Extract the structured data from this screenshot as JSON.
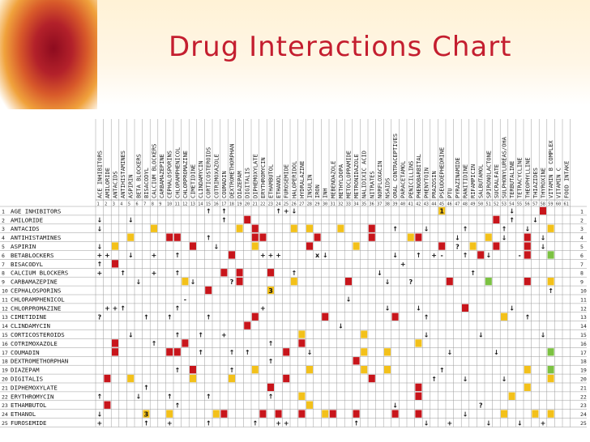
{
  "slide": {
    "title": "Drug Interactions Chart"
  },
  "colors": {
    "title": "#c41e2f",
    "red_cell": "#c8151b",
    "yellow_cell": "#f3c11a",
    "green_cell": "#7cc242"
  },
  "chart": {
    "columns": [
      "ACE INHIBITORS",
      "AMILORIDE",
      "ANTACIDS",
      "ANTIHISTAMINES",
      "ASPIRIN",
      "BETA BLOCKERS",
      "BISACODYL",
      "CALCIUM BLOCKERS",
      "CARBAMAZEPINE",
      "CEPHALOSPORINS",
      "CHLORAMPHENICOL",
      "CHLORPROMAZINE",
      "CIMETIDINE",
      "CLINDAMYCIN",
      "CORTICOSTEROIDS",
      "COTRIMOXAZOLE",
      "COUMADIN",
      "DEXTROMETHORPHAN",
      "DIAZEPAM",
      "DIGITALIS",
      "DIPHEMOXYLATE",
      "ERYTHROMYCIN",
      "ETHAMBUTOL",
      "ETHANOL",
      "FUROSEMIDE",
      "HALOPERIDOL",
      "HYDRALAZINE",
      "INSULIN",
      "IRON",
      "INH",
      "MEBENDAZOLE",
      "METHYLDOPA",
      "METOCLOPRAMIDE",
      "METRONIDAZOLE",
      "NALIDIXIC ACID",
      "NITRATES",
      "NORFLOXACIN",
      "NSAIDS",
      "ORAL CONTRACEPTIVES",
      "PARACETAMOL",
      "PENICILLINS",
      "PHENOBARBITAL",
      "PHENYTOIN",
      "PRAZOSIN",
      "PSEUDOEPHEDRINE",
      "PTU",
      "PYRAZINAMIDE",
      "RANITIDINE",
      "RIFAMPICIN",
      "SALBUTAMOL",
      "SPIRONOLACTONE",
      "SUCRALFATE",
      "SULPHONYLUREAS/OHA",
      "TERBUTALINE",
      "TETRACYCLINE",
      "THEOPHYLLINE",
      "THIAZIDES",
      "THYROXINE",
      "VITAMIN B COMPLEX",
      "VITAMIN C",
      "FOOD INTAKE"
    ],
    "rows": [
      "AGE INHIBITORS",
      "AMILORIDE",
      "ANTACIDS",
      "ANTIHISTAMINES",
      "ASPIRIN",
      "BETABLOCKERS",
      "BISACODYL",
      "CALCIUM BLOCKERS",
      "CARBAMAZEPINE",
      "CEPHALOSPORINS",
      "CHLORAMPHENICOL",
      "CHLORPROMAZINE",
      "CIMETIDINE",
      "CLINDAMYCIN",
      "CORTICOSTEROIDS",
      "COTRIMOXAZOLE",
      "COUMADIN",
      "DEXTROMETHORPHAN",
      "DIAZEPAM",
      "DIGITALIS",
      "DIPHEMOXYLATE",
      "ERYTHROMYCIN",
      "ETHAMBUTOL",
      "ETHANOL",
      "FUROSEMIDE"
    ],
    "cells": [
      {
        "r": 0,
        "c": 14,
        "v": "↑"
      },
      {
        "r": 0,
        "c": 16,
        "v": "↑"
      },
      {
        "r": 0,
        "c": 23,
        "v": "↑"
      },
      {
        "r": 0,
        "c": 24,
        "v": "+"
      },
      {
        "r": 0,
        "c": 25,
        "v": "↓"
      },
      {
        "r": 0,
        "c": 44,
        "k": "yellow",
        "v": "1"
      },
      {
        "r": 0,
        "c": 53,
        "v": "↓"
      },
      {
        "r": 0,
        "c": 57,
        "k": "red"
      },
      {
        "r": 1,
        "c": 0,
        "v": "↓"
      },
      {
        "r": 1,
        "c": 4,
        "v": "↓"
      },
      {
        "r": 1,
        "c": 16,
        "v": "↑"
      },
      {
        "r": 1,
        "c": 19,
        "k": "red"
      },
      {
        "r": 1,
        "c": 51,
        "k": "red"
      },
      {
        "r": 1,
        "c": 53,
        "v": "↑"
      },
      {
        "r": 1,
        "c": 56,
        "v": "↓"
      },
      {
        "r": 2,
        "c": 0,
        "v": "↓"
      },
      {
        "r": 2,
        "c": 7,
        "k": "yellow"
      },
      {
        "r": 2,
        "c": 18,
        "k": "yellow"
      },
      {
        "r": 2,
        "c": 20,
        "k": "red"
      },
      {
        "r": 2,
        "c": 25,
        "k": "yellow"
      },
      {
        "r": 2,
        "c": 27,
        "k": "yellow"
      },
      {
        "r": 2,
        "c": 31,
        "k": "yellow"
      },
      {
        "r": 2,
        "c": 35,
        "k": "red"
      },
      {
        "r": 2,
        "c": 38,
        "v": "↑"
      },
      {
        "r": 2,
        "c": 42,
        "v": "↓"
      },
      {
        "r": 2,
        "c": 47,
        "v": "↑"
      },
      {
        "r": 2,
        "c": 52,
        "v": "↑"
      },
      {
        "r": 2,
        "c": 55,
        "v": "↓"
      },
      {
        "r": 2,
        "c": 58,
        "k": "yellow"
      },
      {
        "r": 3,
        "c": 4,
        "k": "yellow"
      },
      {
        "r": 3,
        "c": 9,
        "k": "red"
      },
      {
        "r": 3,
        "c": 10,
        "k": "red"
      },
      {
        "r": 3,
        "c": 14,
        "v": "↑"
      },
      {
        "r": 3,
        "c": 20,
        "k": "red"
      },
      {
        "r": 3,
        "c": 21,
        "k": "red"
      },
      {
        "r": 3,
        "c": 28,
        "k": "red"
      },
      {
        "r": 3,
        "c": 35,
        "k": "red"
      },
      {
        "r": 3,
        "c": 40,
        "k": "yellow"
      },
      {
        "r": 3,
        "c": 41,
        "k": "red"
      },
      {
        "r": 3,
        "c": 46,
        "v": "↓"
      },
      {
        "r": 3,
        "c": 50,
        "k": "yellow"
      },
      {
        "r": 3,
        "c": 52,
        "v": "↓"
      },
      {
        "r": 3,
        "c": 55,
        "k": "red"
      },
      {
        "r": 3,
        "c": 57,
        "v": "↓"
      },
      {
        "r": 4,
        "c": 0,
        "v": "↓"
      },
      {
        "r": 4,
        "c": 2,
        "k": "yellow"
      },
      {
        "r": 4,
        "c": 12,
        "k": "red"
      },
      {
        "r": 4,
        "c": 15,
        "v": "↓"
      },
      {
        "r": 4,
        "c": 20,
        "k": "yellow"
      },
      {
        "r": 4,
        "c": 27,
        "k": "red"
      },
      {
        "r": 4,
        "c": 33,
        "k": "yellow"
      },
      {
        "r": 4,
        "c": 44,
        "k": "red"
      },
      {
        "r": 4,
        "c": 46,
        "v": "?"
      },
      {
        "r": 4,
        "c": 48,
        "k": "yellow"
      },
      {
        "r": 4,
        "c": 51,
        "k": "red"
      },
      {
        "r": 4,
        "c": 55,
        "k": "red"
      },
      {
        "r": 4,
        "c": 57,
        "v": "↓"
      },
      {
        "r": 5,
        "c": 0,
        "v": "+"
      },
      {
        "r": 5,
        "c": 1,
        "v": "+"
      },
      {
        "r": 5,
        "c": 4,
        "v": "↓"
      },
      {
        "r": 5,
        "c": 7,
        "v": "+"
      },
      {
        "r": 5,
        "c": 10,
        "v": "↑"
      },
      {
        "r": 5,
        "c": 17,
        "k": "red"
      },
      {
        "r": 5,
        "c": 21,
        "v": "+"
      },
      {
        "r": 5,
        "c": 22,
        "v": "+"
      },
      {
        "r": 5,
        "c": 23,
        "v": "+"
      },
      {
        "r": 5,
        "c": 28,
        "v": "x"
      },
      {
        "r": 5,
        "c": 29,
        "v": "↓"
      },
      {
        "r": 5,
        "c": 38,
        "v": "↓"
      },
      {
        "r": 5,
        "c": 41,
        "v": "↑"
      },
      {
        "r": 5,
        "c": 43,
        "v": "+"
      },
      {
        "r": 5,
        "c": 44,
        "v": "-"
      },
      {
        "r": 5,
        "c": 47,
        "v": "↑"
      },
      {
        "r": 5,
        "c": 49,
        "k": "red"
      },
      {
        "r": 5,
        "c": 50,
        "v": "↓"
      },
      {
        "r": 5,
        "c": 54,
        "v": "-"
      },
      {
        "r": 5,
        "c": 55,
        "k": "red"
      },
      {
        "r": 5,
        "c": 58,
        "k": "green"
      },
      {
        "r": 6,
        "c": 0,
        "v": "↑"
      },
      {
        "r": 6,
        "c": 2,
        "k": "red"
      },
      {
        "r": 6,
        "c": 39,
        "v": "+"
      },
      {
        "r": 7,
        "c": 0,
        "v": "+"
      },
      {
        "r": 7,
        "c": 3,
        "v": "↑"
      },
      {
        "r": 7,
        "c": 7,
        "v": "+"
      },
      {
        "r": 7,
        "c": 10,
        "v": "↑"
      },
      {
        "r": 7,
        "c": 16,
        "k": "red"
      },
      {
        "r": 7,
        "c": 18,
        "k": "red"
      },
      {
        "r": 7,
        "c": 22,
        "k": "red"
      },
      {
        "r": 7,
        "c": 25,
        "v": "↑"
      },
      {
        "r": 7,
        "c": 36,
        "v": "↓"
      },
      {
        "r": 7,
        "c": 48,
        "v": "↑"
      },
      {
        "r": 8,
        "c": 5,
        "v": "↓"
      },
      {
        "r": 8,
        "c": 11,
        "k": "yellow"
      },
      {
        "r": 8,
        "c": 12,
        "v": "↓"
      },
      {
        "r": 8,
        "c": 17,
        "v": "?"
      },
      {
        "r": 8,
        "c": 18,
        "k": "red"
      },
      {
        "r": 8,
        "c": 25,
        "k": "yellow"
      },
      {
        "r": 8,
        "c": 32,
        "k": "red"
      },
      {
        "r": 8,
        "c": 37,
        "v": "↓"
      },
      {
        "r": 8,
        "c": 40,
        "v": "?"
      },
      {
        "r": 8,
        "c": 45,
        "k": "red"
      },
      {
        "r": 8,
        "c": 50,
        "k": "green"
      },
      {
        "r": 8,
        "c": 55,
        "k": "red"
      },
      {
        "r": 8,
        "c": 58,
        "k": "yellow"
      },
      {
        "r": 9,
        "c": 14,
        "k": "red"
      },
      {
        "r": 9,
        "c": 22,
        "k": "yellow",
        "v": "3"
      },
      {
        "r": 9,
        "c": 58,
        "v": "↑"
      },
      {
        "r": 10,
        "c": 11,
        "v": "-"
      },
      {
        "r": 10,
        "c": 32,
        "v": "↓"
      },
      {
        "r": 11,
        "c": 1,
        "v": "+"
      },
      {
        "r": 11,
        "c": 2,
        "v": "+"
      },
      {
        "r": 11,
        "c": 3,
        "v": "↑"
      },
      {
        "r": 11,
        "c": 10,
        "v": "↑"
      },
      {
        "r": 11,
        "c": 21,
        "v": "+"
      },
      {
        "r": 11,
        "c": 37,
        "v": "↓"
      },
      {
        "r": 11,
        "c": 41,
        "v": "↓"
      },
      {
        "r": 11,
        "c": 47,
        "k": "red"
      },
      {
        "r": 11,
        "c": 53,
        "v": "↓"
      },
      {
        "r": 12,
        "c": 0,
        "v": "?"
      },
      {
        "r": 12,
        "c": 6,
        "v": "↑"
      },
      {
        "r": 12,
        "c": 9,
        "v": "↑"
      },
      {
        "r": 12,
        "c": 14,
        "v": "↑"
      },
      {
        "r": 12,
        "c": 20,
        "k": "red"
      },
      {
        "r": 12,
        "c": 29,
        "k": "red"
      },
      {
        "r": 12,
        "c": 38,
        "k": "red"
      },
      {
        "r": 12,
        "c": 42,
        "v": "↑"
      },
      {
        "r": 12,
        "c": 52,
        "k": "yellow"
      },
      {
        "r": 12,
        "c": 55,
        "v": "↑"
      },
      {
        "r": 13,
        "c": 19,
        "k": "red"
      },
      {
        "r": 13,
        "c": 31,
        "v": "↓"
      },
      {
        "r": 14,
        "c": 4,
        "v": "↓"
      },
      {
        "r": 14,
        "c": 10,
        "v": "↑"
      },
      {
        "r": 14,
        "c": 13,
        "v": "↑"
      },
      {
        "r": 14,
        "c": 16,
        "v": "+"
      },
      {
        "r": 14,
        "c": 26,
        "k": "yellow"
      },
      {
        "r": 14,
        "c": 34,
        "k": "yellow"
      },
      {
        "r": 14,
        "c": 42,
        "v": "↓"
      },
      {
        "r": 14,
        "c": 49,
        "v": "↓"
      },
      {
        "r": 14,
        "c": 57,
        "v": "↓"
      },
      {
        "r": 15,
        "c": 2,
        "k": "red"
      },
      {
        "r": 15,
        "c": 7,
        "v": "↑"
      },
      {
        "r": 15,
        "c": 11,
        "k": "red"
      },
      {
        "r": 15,
        "c": 22,
        "v": "↑"
      },
      {
        "r": 15,
        "c": 26,
        "k": "red"
      },
      {
        "r": 15,
        "c": 41,
        "k": "yellow"
      },
      {
        "r": 16,
        "c": 2,
        "k": "red"
      },
      {
        "r": 16,
        "c": 9,
        "k": "red"
      },
      {
        "r": 16,
        "c": 10,
        "k": "red"
      },
      {
        "r": 16,
        "c": 13,
        "v": "↑"
      },
      {
        "r": 16,
        "c": 17,
        "v": "↑"
      },
      {
        "r": 16,
        "c": 19,
        "v": "↑"
      },
      {
        "r": 16,
        "c": 24,
        "k": "red"
      },
      {
        "r": 16,
        "c": 27,
        "v": "↓"
      },
      {
        "r": 16,
        "c": 34,
        "k": "yellow"
      },
      {
        "r": 16,
        "c": 37,
        "k": "yellow"
      },
      {
        "r": 16,
        "c": 45,
        "v": "↓"
      },
      {
        "r": 16,
        "c": 51,
        "v": "↓"
      },
      {
        "r": 16,
        "c": 58,
        "k": "green"
      },
      {
        "r": 17,
        "c": 22,
        "v": "↑"
      },
      {
        "r": 17,
        "c": 33,
        "k": "red"
      },
      {
        "r": 18,
        "c": 10,
        "v": "↑"
      },
      {
        "r": 18,
        "c": 12,
        "k": "red"
      },
      {
        "r": 18,
        "c": 17,
        "v": "↑"
      },
      {
        "r": 18,
        "c": 20,
        "k": "yellow"
      },
      {
        "r": 18,
        "c": 27,
        "k": "yellow"
      },
      {
        "r": 18,
        "c": 34,
        "k": "yellow"
      },
      {
        "r": 18,
        "c": 37,
        "k": "yellow"
      },
      {
        "r": 18,
        "c": 44,
        "v": "↑"
      },
      {
        "r": 18,
        "c": 55,
        "k": "yellow"
      },
      {
        "r": 18,
        "c": 58,
        "k": "green"
      },
      {
        "r": 19,
        "c": 1,
        "k": "red"
      },
      {
        "r": 19,
        "c": 4,
        "k": "yellow"
      },
      {
        "r": 19,
        "c": 12,
        "k": "yellow"
      },
      {
        "r": 19,
        "c": 17,
        "k": "yellow"
      },
      {
        "r": 19,
        "c": 24,
        "k": "red"
      },
      {
        "r": 19,
        "c": 35,
        "k": "red"
      },
      {
        "r": 19,
        "c": 43,
        "v": "↑"
      },
      {
        "r": 19,
        "c": 47,
        "v": "↓"
      },
      {
        "r": 19,
        "c": 52,
        "v": "↓"
      },
      {
        "r": 19,
        "c": 58,
        "k": "yellow"
      },
      {
        "r": 20,
        "c": 6,
        "v": "↑"
      },
      {
        "r": 20,
        "c": 22,
        "k": "red"
      },
      {
        "r": 20,
        "c": 41,
        "k": "red"
      },
      {
        "r": 20,
        "c": 55,
        "k": "yellow"
      },
      {
        "r": 21,
        "c": 0,
        "v": "↑"
      },
      {
        "r": 21,
        "c": 5,
        "v": "↓"
      },
      {
        "r": 21,
        "c": 9,
        "v": "↑"
      },
      {
        "r": 21,
        "c": 14,
        "v": "↑"
      },
      {
        "r": 21,
        "c": 22,
        "v": "↑"
      },
      {
        "r": 21,
        "c": 26,
        "k": "yellow"
      },
      {
        "r": 21,
        "c": 41,
        "k": "red"
      },
      {
        "r": 21,
        "c": 53,
        "k": "yellow"
      },
      {
        "r": 22,
        "c": 1,
        "k": "red"
      },
      {
        "r": 22,
        "c": 10,
        "v": "↑"
      },
      {
        "r": 22,
        "c": 27,
        "k": "yellow"
      },
      {
        "r": 22,
        "c": 38,
        "v": "↓"
      },
      {
        "r": 22,
        "c": 49,
        "v": "?"
      },
      {
        "r": 23,
        "c": 0,
        "v": "↓"
      },
      {
        "r": 23,
        "c": 6,
        "k": "yellow",
        "v": "3"
      },
      {
        "r": 23,
        "c": 9,
        "k": "yellow"
      },
      {
        "r": 23,
        "c": 15,
        "k": "yellow"
      },
      {
        "r": 23,
        "c": 16,
        "k": "red"
      },
      {
        "r": 23,
        "c": 21,
        "k": "red"
      },
      {
        "r": 23,
        "c": 23,
        "k": "red"
      },
      {
        "r": 23,
        "c": 26,
        "k": "red"
      },
      {
        "r": 23,
        "c": 29,
        "k": "yellow"
      },
      {
        "r": 23,
        "c": 30,
        "k": "red"
      },
      {
        "r": 23,
        "c": 33,
        "k": "red"
      },
      {
        "r": 23,
        "c": 38,
        "k": "red"
      },
      {
        "r": 23,
        "c": 41,
        "k": "red"
      },
      {
        "r": 23,
        "c": 47,
        "v": "↓"
      },
      {
        "r": 23,
        "c": 52,
        "k": "yellow"
      },
      {
        "r": 23,
        "c": 56,
        "k": "yellow"
      },
      {
        "r": 23,
        "c": 58,
        "k": "yellow"
      },
      {
        "r": 24,
        "c": 0,
        "v": "+"
      },
      {
        "r": 24,
        "c": 6,
        "v": "↑"
      },
      {
        "r": 24,
        "c": 9,
        "v": "+"
      },
      {
        "r": 24,
        "c": 14,
        "v": "↑"
      },
      {
        "r": 24,
        "c": 20,
        "v": "↑"
      },
      {
        "r": 24,
        "c": 23,
        "v": "+"
      },
      {
        "r": 24,
        "c": 24,
        "v": "+"
      },
      {
        "r": 24,
        "c": 33,
        "v": "↑"
      },
      {
        "r": 24,
        "c": 42,
        "v": "↓"
      },
      {
        "r": 24,
        "c": 45,
        "v": "+"
      },
      {
        "r": 24,
        "c": 50,
        "v": "↓"
      },
      {
        "r": 24,
        "c": 54,
        "v": "↓"
      },
      {
        "r": 24,
        "c": 57,
        "v": "+"
      }
    ]
  }
}
